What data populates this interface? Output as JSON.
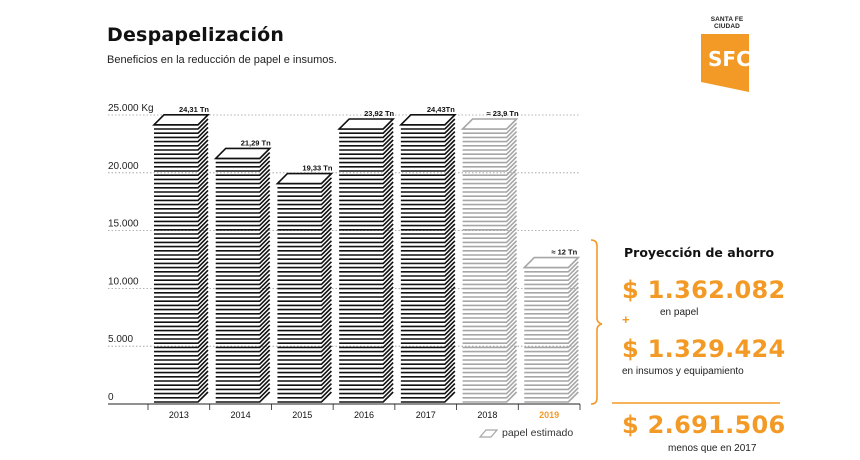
{
  "header": {
    "title": "Despapelización",
    "subtitle": "Beneficios en la reducción de papel e insumos."
  },
  "logo": {
    "top_text": "SANTA FE CIUDAD",
    "mark": "SFC"
  },
  "projection": {
    "title": "Proyección de ahorro",
    "items": [
      {
        "amount": "$ 1.362.082",
        "caption": "en papel"
      },
      {
        "amount": "$ 1.329.424",
        "caption": "en insumos y equipamiento"
      },
      {
        "amount": "$ 2.691.506",
        "caption": "menos que en 2017"
      }
    ],
    "plus": "+"
  },
  "legend": {
    "label": "papel estimado",
    "icon": "paper-sheet-icon"
  },
  "colors": {
    "accent": "#f39a26",
    "actual": "#111111",
    "estimated": "#a6a6a6"
  },
  "chart_data": {
    "type": "bar",
    "title": "Despapelización",
    "subtitle": "Beneficios en la reducción de papel e insumos.",
    "categories": [
      "2013",
      "2014",
      "2015",
      "2016",
      "2017",
      "2018",
      "2019"
    ],
    "values": [
      24310,
      21290,
      19330,
      23920,
      24430,
      23900,
      12000
    ],
    "value_labels": [
      "24,31 Tn",
      "21,29 Tn",
      "19,33 Tn",
      "23,92 Tn",
      "24,43Tn",
      "≈ 23,9 Tn",
      "≈ 12 Tn"
    ],
    "estimated": [
      false,
      false,
      false,
      false,
      false,
      true,
      true
    ],
    "highlight_category": "2019",
    "ylim": [
      0,
      25000
    ],
    "yticks": [
      0,
      5000,
      10000,
      15000,
      20000,
      25000
    ],
    "ytick_labels": [
      "0",
      "5.000",
      "10.000",
      "15.000",
      "20.000",
      "25.000 Kg"
    ],
    "grid": true
  }
}
